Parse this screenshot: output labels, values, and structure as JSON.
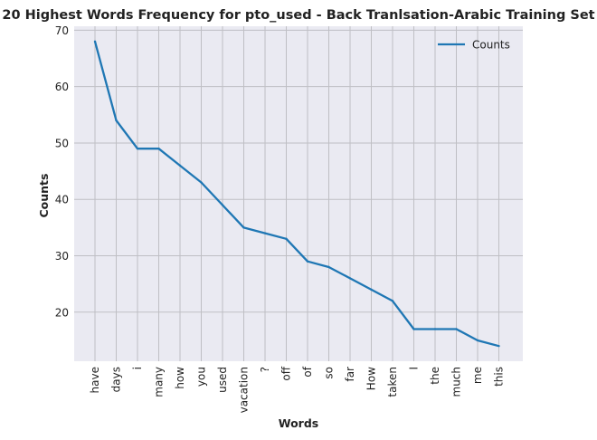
{
  "chart_data": {
    "type": "line",
    "title": "20 Highest Words Frequency for pto_used - Back Tranlsation-Arabic Training Set",
    "xlabel": "Words",
    "ylabel": "Counts",
    "categories": [
      "have",
      "days",
      "i",
      "many",
      "how",
      "you",
      "used",
      "vacation",
      "?",
      "off",
      "of",
      "so",
      "far",
      "How",
      "taken",
      "I",
      "the",
      "much",
      "me",
      "this"
    ],
    "series": [
      {
        "name": "Counts",
        "values": [
          68,
          54,
          49,
          49,
          46,
          43,
          39,
          35,
          34,
          33,
          29,
          28,
          26,
          24,
          22,
          17,
          17,
          17,
          15,
          14
        ]
      }
    ],
    "ylim": [
      11.3,
      70.7
    ],
    "yticks": [
      20,
      30,
      40,
      50,
      60,
      70
    ],
    "grid": true,
    "legend_position": "top-right",
    "colors": {
      "line": "#1f77b4",
      "plot_bg": "#eaeaf2",
      "grid": "#bfbfc4"
    }
  }
}
